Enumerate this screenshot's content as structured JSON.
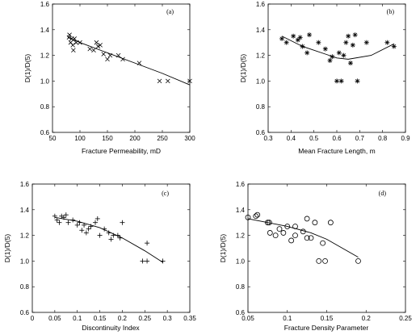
{
  "chart_data": [
    {
      "type": "scatter",
      "panel_label": "(a)",
      "xlabel": "Fracture Permeability, mD",
      "ylabel": "D(1)/D(5)",
      "xlim": [
        50,
        300
      ],
      "ylim": [
        0.6,
        1.6
      ],
      "xticks": [
        50,
        100,
        150,
        200,
        250,
        300
      ],
      "yticks": [
        0.6,
        0.8,
        1.0,
        1.2,
        1.4,
        1.6
      ],
      "marker": "x",
      "points": [
        [
          80,
          1.34
        ],
        [
          81,
          1.36
        ],
        [
          83,
          1.3
        ],
        [
          85,
          1.33
        ],
        [
          87,
          1.28
        ],
        [
          90,
          1.33
        ],
        [
          88,
          1.24
        ],
        [
          93,
          1.3
        ],
        [
          100,
          1.3
        ],
        [
          118,
          1.25
        ],
        [
          125,
          1.24
        ],
        [
          130,
          1.3
        ],
        [
          133,
          1.27
        ],
        [
          137,
          1.28
        ],
        [
          143,
          1.21
        ],
        [
          150,
          1.17
        ],
        [
          155,
          1.2
        ],
        [
          170,
          1.2
        ],
        [
          178,
          1.17
        ],
        [
          208,
          1.14
        ],
        [
          245,
          1.0
        ],
        [
          260,
          1.0
        ],
        [
          300,
          1.0
        ]
      ],
      "fit": [
        [
          78,
          1.34
        ],
        [
          100,
          1.3
        ],
        [
          150,
          1.22
        ],
        [
          200,
          1.14
        ],
        [
          250,
          1.06
        ],
        [
          300,
          0.97
        ]
      ],
      "grid": false
    },
    {
      "type": "scatter",
      "panel_label": "(b)",
      "xlabel": "Mean Fracture Length, m",
      "ylabel": "D(1)/D(5)",
      "xlim": [
        0.3,
        0.9
      ],
      "ylim": [
        0.6,
        1.6
      ],
      "xticks": [
        0.3,
        0.4,
        0.5,
        0.6,
        0.7,
        0.8,
        0.9
      ],
      "yticks": [
        0.6,
        0.8,
        1.0,
        1.2,
        1.4,
        1.6
      ],
      "marker": "*",
      "points": [
        [
          0.36,
          1.33
        ],
        [
          0.38,
          1.3
        ],
        [
          0.41,
          1.35
        ],
        [
          0.43,
          1.32
        ],
        [
          0.44,
          1.34
        ],
        [
          0.45,
          1.27
        ],
        [
          0.47,
          1.22
        ],
        [
          0.48,
          1.36
        ],
        [
          0.52,
          1.3
        ],
        [
          0.55,
          1.25
        ],
        [
          0.57,
          1.16
        ],
        [
          0.58,
          1.19
        ],
        [
          0.6,
          1.0
        ],
        [
          0.61,
          1.22
        ],
        [
          0.62,
          1.0
        ],
        [
          0.63,
          1.2
        ],
        [
          0.64,
          1.3
        ],
        [
          0.65,
          1.35
        ],
        [
          0.66,
          1.14
        ],
        [
          0.67,
          1.28
        ],
        [
          0.68,
          1.36
        ],
        [
          0.69,
          1.0
        ],
        [
          0.73,
          1.3
        ],
        [
          0.82,
          1.3
        ],
        [
          0.85,
          1.27
        ]
      ],
      "fit": [
        [
          0.36,
          1.35
        ],
        [
          0.45,
          1.27
        ],
        [
          0.55,
          1.21
        ],
        [
          0.6,
          1.18
        ],
        [
          0.65,
          1.17
        ],
        [
          0.75,
          1.2
        ],
        [
          0.85,
          1.29
        ]
      ],
      "grid": false
    },
    {
      "type": "scatter",
      "panel_label": "(c)",
      "xlabel": "Discontinuity Index",
      "ylabel": "D(1)/D(5)",
      "xlim": [
        0,
        0.35
      ],
      "ylim": [
        0.6,
        1.6
      ],
      "xticks": [
        0,
        0.05,
        0.1,
        0.15,
        0.2,
        0.25,
        0.3,
        0.35
      ],
      "yticks": [
        0.6,
        0.8,
        1.0,
        1.2,
        1.4,
        1.6
      ],
      "marker": "+",
      "points": [
        [
          0.05,
          1.35
        ],
        [
          0.055,
          1.32
        ],
        [
          0.06,
          1.3
        ],
        [
          0.065,
          1.35
        ],
        [
          0.07,
          1.34
        ],
        [
          0.075,
          1.36
        ],
        [
          0.08,
          1.3
        ],
        [
          0.09,
          1.32
        ],
        [
          0.1,
          1.28
        ],
        [
          0.105,
          1.3
        ],
        [
          0.11,
          1.24
        ],
        [
          0.115,
          1.28
        ],
        [
          0.12,
          1.22
        ],
        [
          0.125,
          1.25
        ],
        [
          0.13,
          1.27
        ],
        [
          0.14,
          1.3
        ],
        [
          0.145,
          1.33
        ],
        [
          0.15,
          1.2
        ],
        [
          0.16,
          1.25
        ],
        [
          0.17,
          1.22
        ],
        [
          0.175,
          1.17
        ],
        [
          0.18,
          1.2
        ],
        [
          0.19,
          1.2
        ],
        [
          0.195,
          1.18
        ],
        [
          0.2,
          1.3
        ],
        [
          0.245,
          1.0
        ],
        [
          0.255,
          1.0
        ],
        [
          0.255,
          1.14
        ],
        [
          0.29,
          1.0
        ]
      ],
      "fit": [
        [
          0.05,
          1.34
        ],
        [
          0.1,
          1.31
        ],
        [
          0.15,
          1.26
        ],
        [
          0.2,
          1.18
        ],
        [
          0.25,
          1.08
        ],
        [
          0.29,
          0.99
        ]
      ],
      "grid": false
    },
    {
      "type": "scatter",
      "panel_label": "(d)",
      "xlabel": "Fracture Density Parameter",
      "ylabel": "D(1)/D(5)",
      "xlim": [
        0.05,
        0.25
      ],
      "ylim": [
        0.6,
        1.6
      ],
      "xticks": [
        0.05,
        0.1,
        0.15,
        0.2,
        0.25
      ],
      "yticks": [
        0.6,
        0.8,
        1.0,
        1.2,
        1.4,
        1.6
      ],
      "marker": "o",
      "points": [
        [
          0.05,
          1.34
        ],
        [
          0.06,
          1.35
        ],
        [
          0.062,
          1.36
        ],
        [
          0.075,
          1.3
        ],
        [
          0.077,
          1.3
        ],
        [
          0.078,
          1.22
        ],
        [
          0.085,
          1.2
        ],
        [
          0.09,
          1.25
        ],
        [
          0.095,
          1.22
        ],
        [
          0.1,
          1.27
        ],
        [
          0.105,
          1.16
        ],
        [
          0.11,
          1.2
        ],
        [
          0.11,
          1.27
        ],
        [
          0.12,
          1.23
        ],
        [
          0.125,
          1.18
        ],
        [
          0.125,
          1.33
        ],
        [
          0.13,
          1.18
        ],
        [
          0.135,
          1.3
        ],
        [
          0.14,
          1.0
        ],
        [
          0.145,
          1.14
        ],
        [
          0.148,
          1.0
        ],
        [
          0.155,
          1.3
        ],
        [
          0.19,
          1.0
        ]
      ],
      "fit": [
        [
          0.05,
          1.33
        ],
        [
          0.1,
          1.27
        ],
        [
          0.13,
          1.22
        ],
        [
          0.15,
          1.17
        ],
        [
          0.19,
          1.03
        ]
      ],
      "grid": false
    }
  ]
}
